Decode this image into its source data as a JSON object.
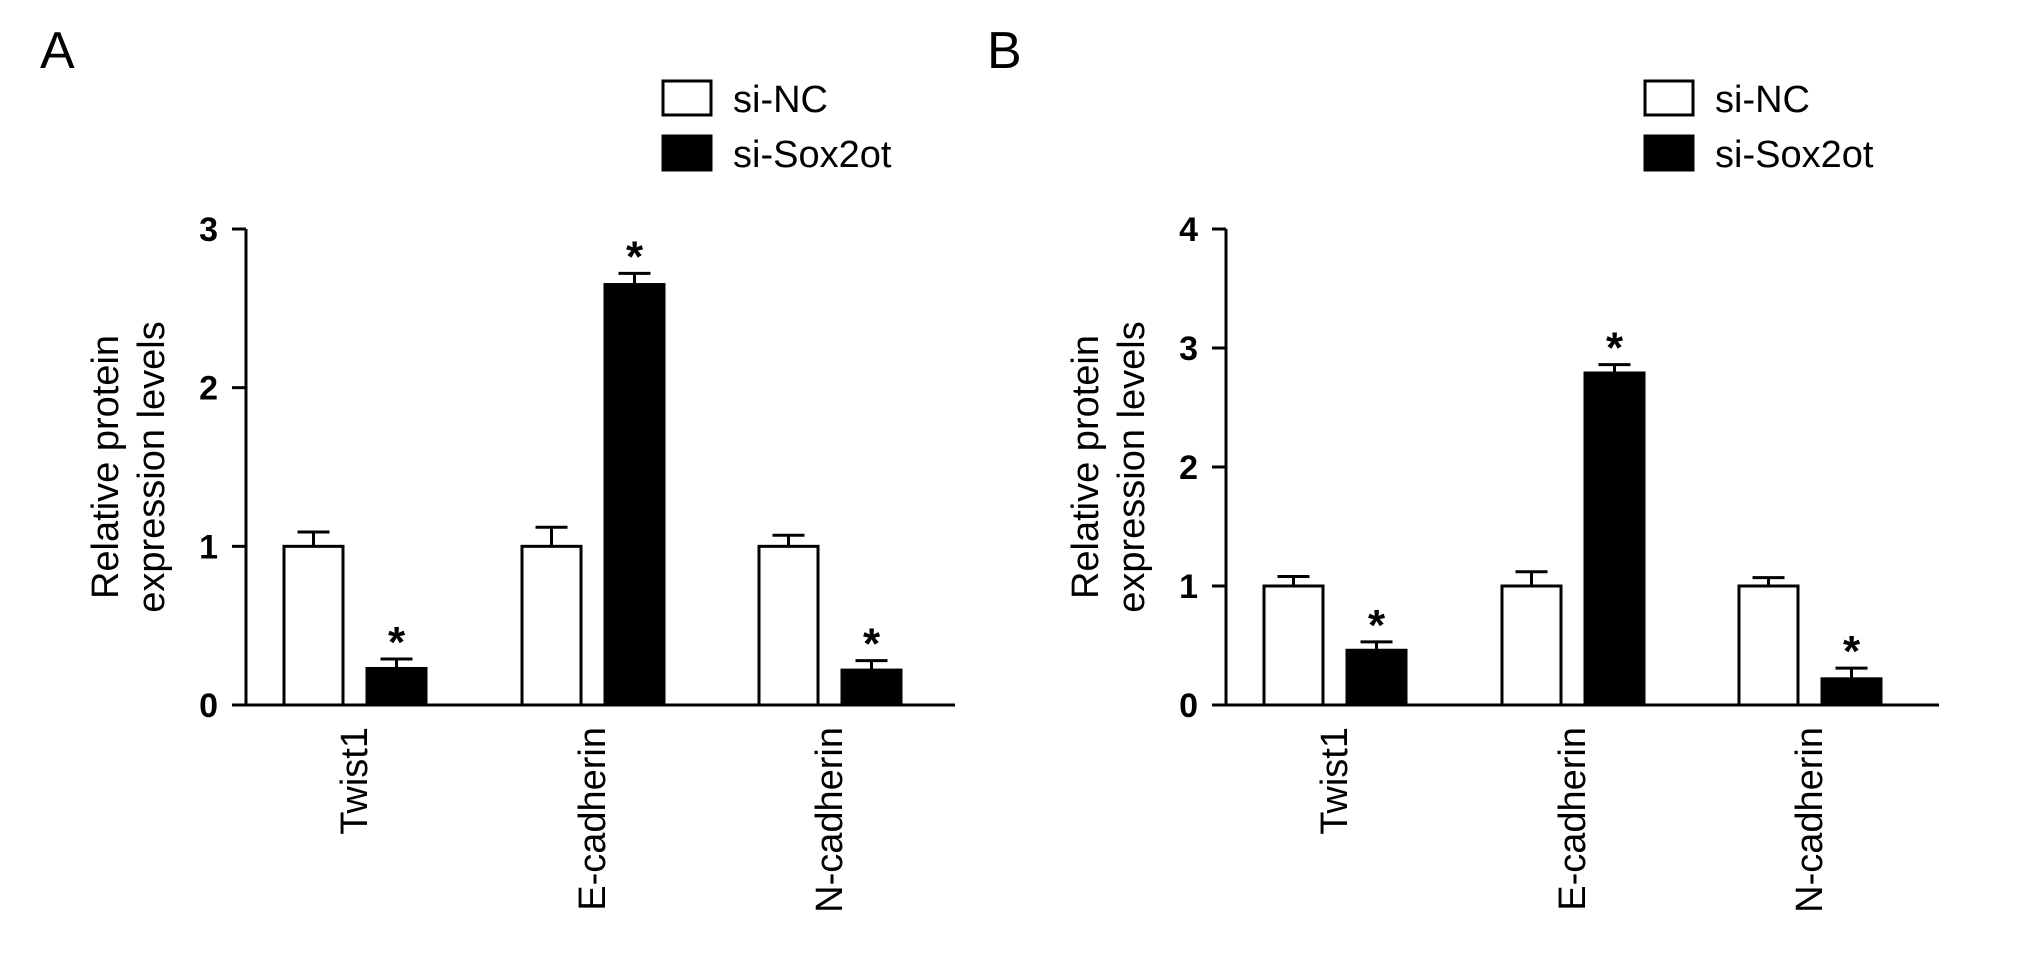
{
  "figure": {
    "panels": [
      "A",
      "B"
    ]
  },
  "chart_data": [
    {
      "panel": "A",
      "type": "bar",
      "title": "",
      "xlabel": "",
      "ylabel": "Relative protein expression levels",
      "ylabel_lines": [
        "Relative protein",
        "expression levels"
      ],
      "categories": [
        "Twist1",
        "E-cadherin",
        "N-cadherin"
      ],
      "ylim": [
        0,
        3
      ],
      "yticks": [
        "0",
        "1",
        "2",
        "3"
      ],
      "legend_position": "top-right",
      "series": [
        {
          "name": "si-NC",
          "fill": "#ffffff",
          "values": [
            1.0,
            1.0,
            1.0
          ],
          "errors": [
            0.09,
            0.12,
            0.07
          ],
          "significant": [
            false,
            false,
            false
          ]
        },
        {
          "name": "si-Sox2ot",
          "fill": "#000000",
          "values": [
            0.23,
            2.65,
            0.22
          ],
          "errors": [
            0.06,
            0.07,
            0.06
          ],
          "significant": [
            true,
            true,
            true
          ]
        }
      ],
      "significance_marker": "*"
    },
    {
      "panel": "B",
      "type": "bar",
      "title": "",
      "xlabel": "",
      "ylabel": "Relative protein expression levels",
      "ylabel_lines": [
        "Relative protein",
        "expression levels"
      ],
      "categories": [
        "Twist1",
        "E-cadherin",
        "N-cadherin"
      ],
      "ylim": [
        0,
        4
      ],
      "yticks": [
        "0",
        "1",
        "2",
        "3",
        "4"
      ],
      "legend_position": "top-right",
      "series": [
        {
          "name": "si-NC",
          "fill": "#ffffff",
          "values": [
            1.0,
            1.0,
            1.0
          ],
          "errors": [
            0.08,
            0.12,
            0.07
          ],
          "significant": [
            false,
            false,
            false
          ]
        },
        {
          "name": "si-Sox2ot",
          "fill": "#000000",
          "values": [
            0.46,
            2.79,
            0.22
          ],
          "errors": [
            0.07,
            0.07,
            0.09
          ],
          "significant": [
            true,
            true,
            true
          ]
        }
      ],
      "significance_marker": "*"
    }
  ]
}
